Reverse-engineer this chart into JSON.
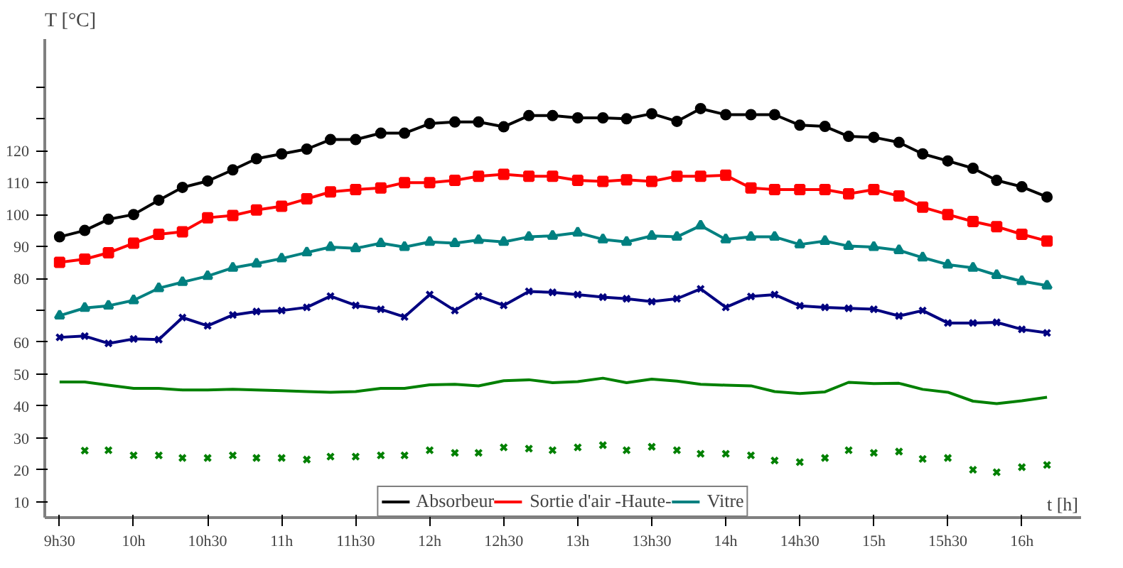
{
  "chart_data": {
    "type": "line",
    "xlabel": "t [h]",
    "ylabel": "T [°C]",
    "x": [
      9.5,
      9.67,
      9.83,
      10,
      10.17,
      10.33,
      10.5,
      10.67,
      10.83,
      11,
      11.17,
      11.33,
      11.5,
      11.67,
      11.83,
      12,
      12.17,
      12.33,
      12.5,
      12.67,
      12.83,
      13,
      13.17,
      13.33,
      13.5,
      13.67,
      13.83,
      14,
      14.17,
      14.33,
      14.5,
      14.67,
      14.83,
      15,
      15.17,
      15.33,
      15.5,
      15.67,
      15.83,
      16,
      16.17
    ],
    "series": [
      {
        "name": "Absorbeur",
        "color": "#000000",
        "marker": "circle",
        "values": [
          93,
          95,
          98.5,
          100,
          104.5,
          108.5,
          110.5,
          114,
          117.5,
          119,
          120.5,
          123.5,
          123.5,
          125.5,
          125.5,
          128.5,
          129,
          129,
          127.5,
          131,
          131,
          130.3,
          130.3,
          130,
          131.6,
          129.2,
          133.2,
          131.3,
          131.3,
          131.3,
          128,
          127.6,
          124.5,
          124.2,
          122.6,
          119,
          116.8,
          114.5,
          110.7,
          108.7,
          105.5
        ]
      },
      {
        "name": "Sortie d'air -Haute-",
        "color": "#ff0000",
        "marker": "square",
        "values": [
          85,
          86,
          88,
          91,
          93.8,
          94.6,
          99,
          99.7,
          101.4,
          102.6,
          104.9,
          107.1,
          107.8,
          108.3,
          110,
          110,
          110.7,
          112,
          112.6,
          112,
          112,
          110.7,
          110.4,
          110.9,
          110.4,
          112,
          112,
          112.3,
          108.3,
          107.8,
          107.8,
          107.8,
          106.5,
          107.8,
          105.8,
          102.3,
          100,
          97.8,
          96.2,
          93.8,
          91.7
        ]
      },
      {
        "name": "Vitre",
        "color": "#008080",
        "marker": "triangle",
        "values": [
          68.3,
          70.7,
          71.4,
          73.1,
          76.9,
          78.8,
          80.7,
          83.3,
          84.6,
          86.2,
          88.1,
          89.8,
          89.4,
          91,
          89.8,
          91.4,
          91,
          92,
          91.4,
          93,
          93.3,
          94.3,
          92.2,
          91.4,
          93.3,
          93,
          96.5,
          92.2,
          93,
          93,
          90.6,
          91.7,
          90.1,
          89.8,
          88.8,
          86.5,
          84.3,
          83.3,
          81,
          79.1,
          77.7
        ]
      },
      {
        "color": "#000080",
        "marker": "cross",
        "values": [
          61.5,
          61.9,
          59.6,
          61,
          60.8,
          67.7,
          65.1,
          68.5,
          69.6,
          69.9,
          70.9,
          74.4,
          71.5,
          70.3,
          67.9,
          74.9,
          69.9,
          74.4,
          71.5,
          75.9,
          75.6,
          74.9,
          74.1,
          73.6,
          72.7,
          73.6,
          76.7,
          70.9,
          74.3,
          74.9,
          71.4,
          70.9,
          70.6,
          70.3,
          68.2,
          69.9,
          66,
          66,
          66.2,
          64,
          62.9
        ]
      },
      {
        "color": "#008000",
        "marker": "none",
        "values": [
          47.5,
          47.5,
          46.5,
          45.5,
          45.5,
          45,
          45,
          45.2,
          45,
          44.8,
          44.5,
          44.3,
          44.5,
          45.5,
          45.5,
          46.6,
          46.8,
          46.3,
          47.9,
          48.2,
          47.3,
          47.6,
          48.7,
          47.3,
          48.4,
          47.8,
          46.8,
          46.5,
          46.3,
          44.5,
          43.9,
          44.4,
          47.4,
          47,
          47.1,
          45.2,
          44.3,
          41.5,
          40.7,
          41.6,
          42.7
        ]
      },
      {
        "type": "scatter",
        "color": "#008000",
        "marker": "cross",
        "values": [
          null,
          26,
          26.1,
          24.5,
          24.5,
          23.7,
          23.7,
          24.5,
          23.7,
          23.7,
          23.2,
          24.1,
          24.1,
          24.5,
          24.5,
          26.1,
          25.3,
          25.3,
          27,
          26.6,
          26.1,
          27,
          27.7,
          26.1,
          27.2,
          26.1,
          25,
          25,
          24.5,
          22.9,
          22.4,
          23.7,
          26.1,
          25.3,
          25.7,
          23.4,
          23.7,
          20,
          19.2,
          20.8,
          21.5
        ]
      }
    ],
    "xlim": [
      9.4,
      16.4
    ],
    "xticks": [
      {
        "value": 9.5,
        "label": "9h30"
      },
      {
        "value": 10,
        "label": "10h"
      },
      {
        "value": 10.5,
        "label": "10h30"
      },
      {
        "value": 11,
        "label": "11h"
      },
      {
        "value": 11.5,
        "label": "11h30"
      },
      {
        "value": 12,
        "label": "12h"
      },
      {
        "value": 12.5,
        "label": "12h30"
      },
      {
        "value": 13,
        "label": "13h"
      },
      {
        "value": 13.5,
        "label": "13h30"
      },
      {
        "value": 14,
        "label": "14h"
      },
      {
        "value": 14.5,
        "label": "14h30"
      },
      {
        "value": 15,
        "label": "15h"
      },
      {
        "value": 15.5,
        "label": "15h30"
      },
      {
        "value": 16,
        "label": "16h"
      }
    ],
    "ylim": [
      5,
      155
    ],
    "yticks": [
      10,
      20,
      30,
      40,
      50,
      60,
      {
        "value": 70,
        "label": null
      },
      80,
      90,
      100,
      110,
      120,
      {
        "value": 130,
        "label": null
      },
      {
        "value": 140,
        "label": null
      }
    ],
    "grid": false,
    "legend": "bottom"
  }
}
